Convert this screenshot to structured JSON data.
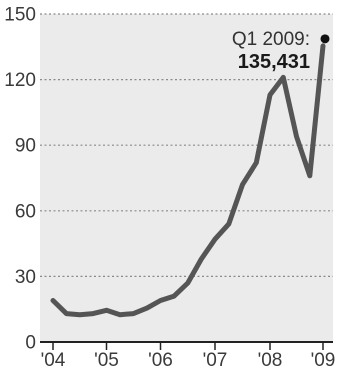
{
  "chart_data": {
    "type": "line",
    "title": "",
    "xlabel": "",
    "ylabel": "",
    "x_tick_labels": [
      "'04",
      "'05",
      "'06",
      "'07",
      "'08",
      "'09"
    ],
    "y_ticks": [
      0,
      30,
      60,
      90,
      120,
      150
    ],
    "y_tick_labels": [
      "0",
      "30",
      "60",
      "90",
      "120",
      "150"
    ],
    "ylim": [
      0,
      150
    ],
    "grid": true,
    "legend": "none",
    "series": [
      {
        "x": [
          "Q1 2004",
          "Q2 2004",
          "Q3 2004",
          "Q4 2004",
          "Q1 2005",
          "Q2 2005",
          "Q3 2005",
          "Q4 2005",
          "Q1 2006",
          "Q2 2006",
          "Q3 2006",
          "Q4 2006",
          "Q1 2007",
          "Q2 2007",
          "Q3 2007",
          "Q4 2007",
          "Q1 2008",
          "Q2 2008",
          "Q3 2008",
          "Q4 2008",
          "Q1 2009"
        ],
        "values": [
          19,
          13,
          12.5,
          13,
          14.5,
          12.5,
          13,
          15.5,
          19,
          21,
          27,
          38,
          47,
          54,
          72,
          82,
          113,
          121,
          94,
          76,
          135.431
        ]
      }
    ],
    "annotation": {
      "label": "Q1 2009:",
      "value": "135,431"
    },
    "colors": {
      "plot_background": "#ebebeb",
      "line": "#555555",
      "grid": "#8a8a8a",
      "axis": "#222222",
      "marker": "#111111"
    }
  }
}
